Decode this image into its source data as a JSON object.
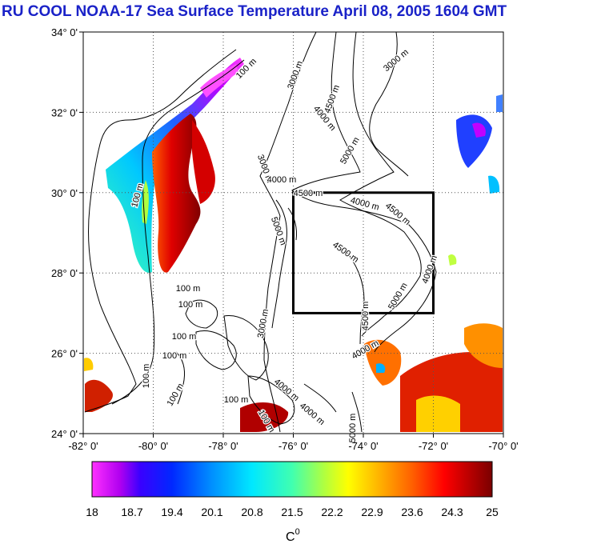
{
  "title": "RU COOL  NOAA-17 Sea Surface Temperature April 08, 2005 1604 GMT",
  "map": {
    "lat_range": [
      24,
      34
    ],
    "lon_range": [
      -82,
      -70
    ],
    "lat_ticks": [
      "34° 0'",
      "32° 0'",
      "30° 0'",
      "28° 0'",
      "26° 0'",
      "24° 0'"
    ],
    "lon_ticks": [
      "-82° 0'",
      "-80° 0'",
      "-78° 0'",
      "-76° 0'",
      "-74° 0'",
      "-72° 0'",
      "-70° 0'"
    ],
    "box": {
      "lon_min": -76,
      "lon_max": -72,
      "lat_min": 27,
      "lat_max": 30
    },
    "contour_labels": [
      {
        "text": "100 m"
      },
      {
        "text": "3000 m"
      },
      {
        "text": "3000 m"
      },
      {
        "text": "4500 m"
      },
      {
        "text": "4000 m"
      },
      {
        "text": "5000 m"
      },
      {
        "text": "100 m"
      },
      {
        "text": "3000 m"
      },
      {
        "text": "4000 m"
      },
      {
        "text": "4500 m"
      },
      {
        "text": "4000 m"
      },
      {
        "text": "4500 m"
      },
      {
        "text": "4500 m"
      },
      {
        "text": "5000 m"
      },
      {
        "text": "4000 m"
      },
      {
        "text": "5000 m"
      },
      {
        "text": "4500 m"
      },
      {
        "text": "4000 m"
      },
      {
        "text": "100 m"
      },
      {
        "text": "100 m"
      },
      {
        "text": "100 m"
      },
      {
        "text": "100 m"
      },
      {
        "text": "100 m"
      },
      {
        "text": "3000 m"
      },
      {
        "text": "100 m"
      },
      {
        "text": "4000 m"
      },
      {
        "text": "4000 m"
      },
      {
        "text": "100 m"
      },
      {
        "text": "5000 m"
      },
      {
        "text": "100 m"
      }
    ]
  },
  "colorbar": {
    "labels": [
      "18",
      "18.7",
      "19.4",
      "20.1",
      "20.8",
      "21.5",
      "22.2",
      "22.9",
      "23.6",
      "24.3",
      "25"
    ],
    "unit": "C",
    "unit_sup": "0"
  },
  "colors": {
    "title": "#1a22c8",
    "grid": "#555555",
    "land": "#ffffff"
  }
}
